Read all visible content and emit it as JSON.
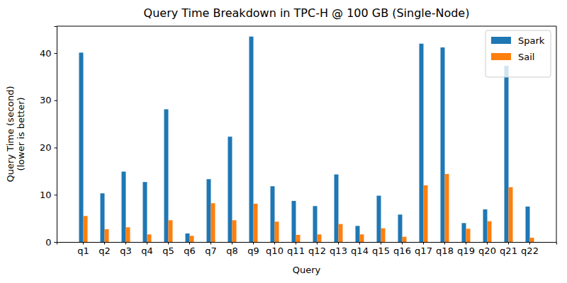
{
  "chart_data": {
    "type": "bar",
    "title": "Query Time Breakdown in TPC-H @ 100 GB (Single-Node)",
    "xlabel": "Query",
    "ylabel": "Query Time (second)\n(lower is better)",
    "categories": [
      "q1",
      "q2",
      "q3",
      "q4",
      "q5",
      "q6",
      "q7",
      "q8",
      "q9",
      "q10",
      "q11",
      "q12",
      "q13",
      "q14",
      "q15",
      "q16",
      "q17",
      "q18",
      "q19",
      "q20",
      "q21",
      "q22"
    ],
    "series": [
      {
        "name": "Spark",
        "color": "#1f77b4",
        "values": [
          40.1,
          10.3,
          14.9,
          12.7,
          28.1,
          1.8,
          13.3,
          22.3,
          43.5,
          11.8,
          8.7,
          7.6,
          14.3,
          3.4,
          9.8,
          5.8,
          42.0,
          41.2,
          4.0,
          6.9,
          37.3,
          7.5
        ]
      },
      {
        "name": "Sail",
        "color": "#ff7f0e",
        "values": [
          5.5,
          2.7,
          3.1,
          1.6,
          4.6,
          1.3,
          8.2,
          4.6,
          8.1,
          4.3,
          1.5,
          1.6,
          3.8,
          1.6,
          2.9,
          1.1,
          12.0,
          14.4,
          2.8,
          4.4,
          11.6,
          0.9
        ]
      }
    ],
    "ylim": [
      0,
      45.7
    ],
    "yticks": [
      0,
      10,
      20,
      30,
      40
    ],
    "grid": false,
    "legend": "upper right"
  }
}
